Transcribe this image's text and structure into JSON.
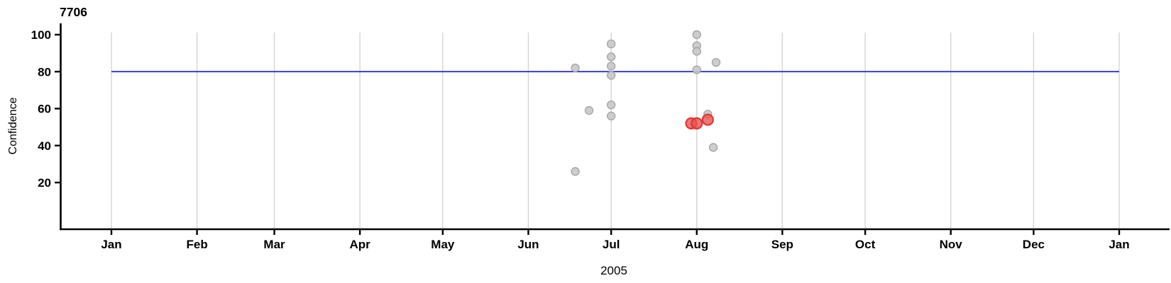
{
  "chart_data": {
    "type": "scatter",
    "title": "7706",
    "xlabel": "2005",
    "ylabel": "Confidence",
    "background": "#ffffff",
    "axis_color": "#000000",
    "gridline_color": "#d4d4d4",
    "grid": "vertical-month-gridlines-only",
    "legend": "none",
    "x_axis": {
      "kind": "time",
      "start": "2005-01-01",
      "end": "2006-01-01",
      "tick_labels": [
        "Jan",
        "Feb",
        "Mar",
        "Apr",
        "May",
        "Jun",
        "Jul",
        "Aug",
        "Sep",
        "Oct",
        "Nov",
        "Dec",
        "Jan"
      ]
    },
    "y_axis": {
      "ticks": [
        20,
        40,
        60,
        80,
        100
      ],
      "range": [
        -5,
        106
      ]
    },
    "reference_line": {
      "value": 80,
      "color": "#2222cc"
    },
    "series": [
      {
        "name": "observations",
        "marker": "circle",
        "fill": "#c8c8c8",
        "stroke": "#a3a3a3",
        "radius": 5.5,
        "stroke_width": 1.4,
        "fill_opacity": 0.9,
        "points": [
          {
            "date": "2005-06-18",
            "confidence": 82
          },
          {
            "date": "2005-06-18",
            "confidence": 26
          },
          {
            "date": "2005-06-23",
            "confidence": 59
          },
          {
            "date": "2005-07-01",
            "confidence": 95
          },
          {
            "date": "2005-07-01",
            "confidence": 88
          },
          {
            "date": "2005-07-01",
            "confidence": 83
          },
          {
            "date": "2005-07-01",
            "confidence": 78
          },
          {
            "date": "2005-07-01",
            "confidence": 62
          },
          {
            "date": "2005-07-01",
            "confidence": 56
          },
          {
            "date": "2005-08-01",
            "confidence": 100
          },
          {
            "date": "2005-08-01",
            "confidence": 94
          },
          {
            "date": "2005-08-01",
            "confidence": 91
          },
          {
            "date": "2005-08-01",
            "confidence": 81
          },
          {
            "date": "2005-08-05",
            "confidence": 57
          },
          {
            "date": "2005-08-07",
            "confidence": 39
          },
          {
            "date": "2005-08-08",
            "confidence": 85
          }
        ]
      },
      {
        "name": "highlighted-observations",
        "marker": "circle",
        "fill": "#ec4f4a",
        "stroke": "#d93230",
        "radius": 7.5,
        "stroke_width": 2.2,
        "fill_opacity": 0.78,
        "points": [
          {
            "date": "2005-07-30",
            "confidence": 52
          },
          {
            "date": "2005-08-01",
            "confidence": 52
          },
          {
            "date": "2005-08-05",
            "confidence": 54
          }
        ]
      }
    ]
  }
}
